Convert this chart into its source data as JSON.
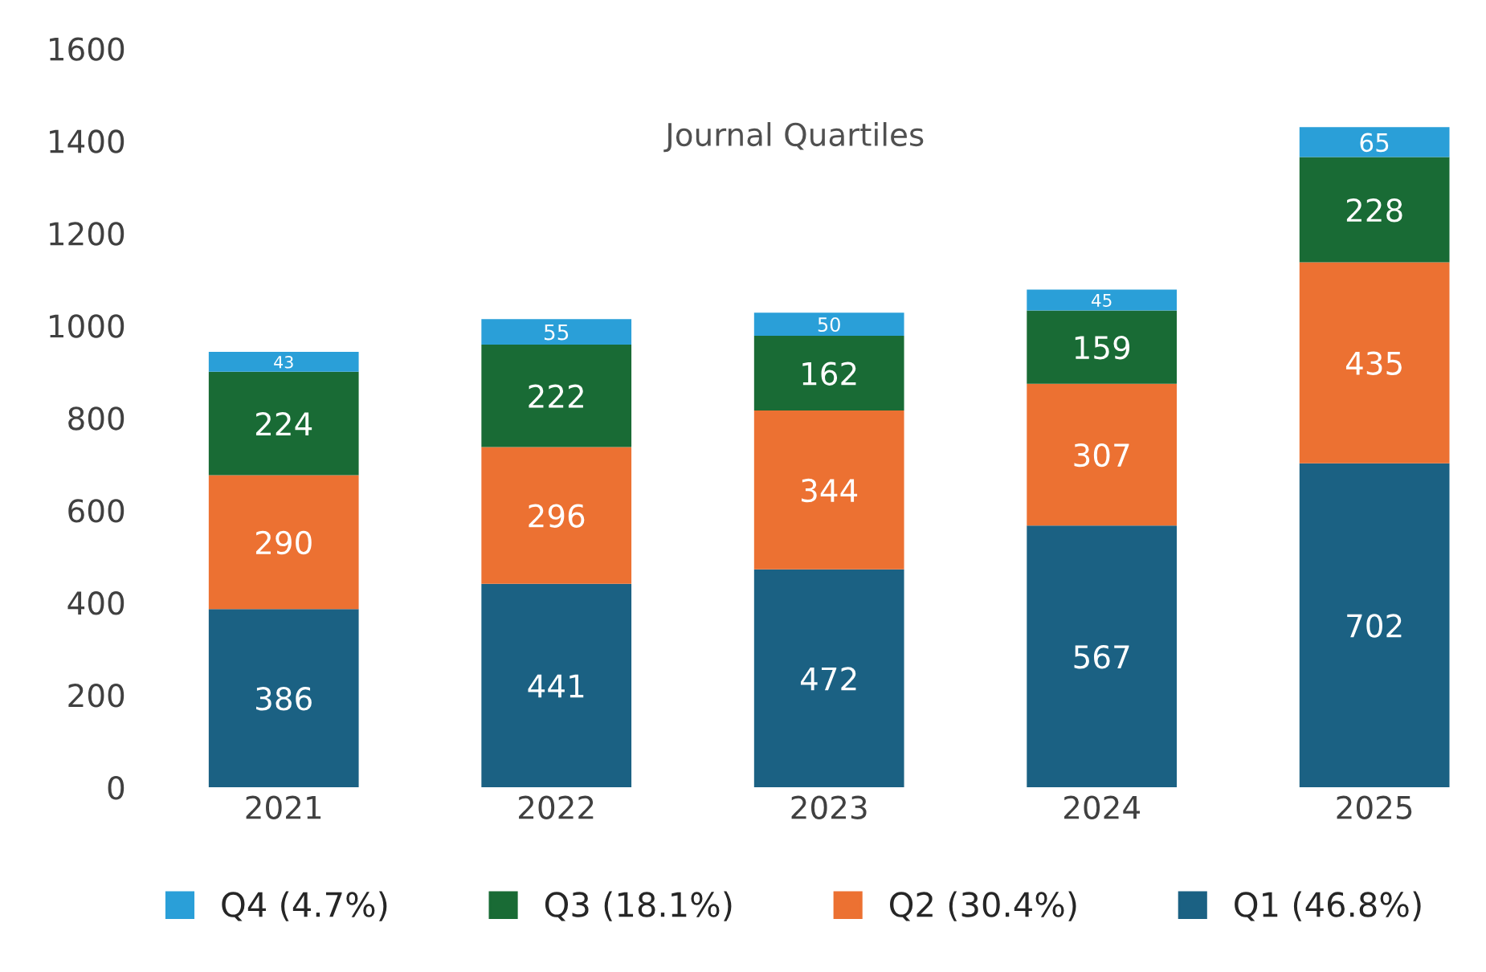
{
  "chart_data": {
    "type": "bar",
    "title": "Journal Quartiles",
    "stacked": true,
    "categories": [
      "2021",
      "2022",
      "2023",
      "2024",
      "2025"
    ],
    "series": [
      {
        "name": "Q1 (46.8%)",
        "color": "#1b6183",
        "values": [
          386,
          441,
          472,
          567,
          702
        ]
      },
      {
        "name": "Q2 (30.4%)",
        "color": "#ec7132",
        "values": [
          290,
          296,
          344,
          307,
          435
        ]
      },
      {
        "name": "Q3 (18.1%)",
        "color": "#196b35",
        "values": [
          224,
          222,
          162,
          159,
          228
        ]
      },
      {
        "name": "Q4 (4.7%)",
        "color": "#2a9fd8",
        "values": [
          43,
          55,
          50,
          45,
          65
        ]
      }
    ],
    "ylim": [
      0,
      1600
    ],
    "yticks": [
      0,
      200,
      400,
      600,
      800,
      1000,
      1200,
      1400,
      1600
    ],
    "data_labels": true,
    "grid": false,
    "legend": "bottom"
  }
}
